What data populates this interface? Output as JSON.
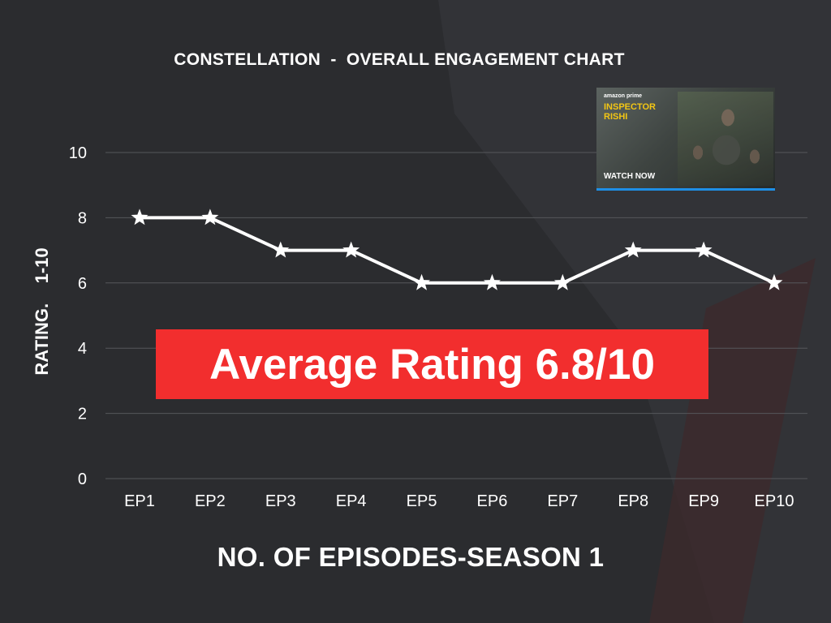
{
  "colors": {
    "background": "#2b2c2f",
    "line": "#ffffff",
    "grid": "#56575b",
    "callout": "#f22e2e",
    "ad_cta_bar": "#1e8fe6",
    "ad_show_title": "#f3c614"
  },
  "callout": {
    "text": "Average Rating 6.8/10"
  },
  "ad": {
    "brand": "amazon prime",
    "show_title": "INSPECTOR RISHI",
    "cta": "WATCH NOW"
  },
  "chart_data": {
    "type": "line",
    "title": "CONSTELLATION  -  OVERALL ENGAGEMENT CHART",
    "xlabel": "NO. OF EPISODES-SEASON 1",
    "ylabel": "RATING.    1-10",
    "categories": [
      "EP1",
      "EP2",
      "EP3",
      "EP4",
      "EP5",
      "EP6",
      "EP7",
      "EP8",
      "EP9",
      "EP10"
    ],
    "series": [
      {
        "values": [
          8,
          8,
          7,
          7,
          6,
          6,
          6,
          7,
          7,
          6
        ],
        "marker": "star",
        "color": "#ffffff"
      }
    ],
    "yticks": [
      0,
      2,
      4,
      6,
      8,
      10
    ],
    "ylim": [
      0,
      10
    ],
    "grid": true,
    "legend": "none"
  }
}
